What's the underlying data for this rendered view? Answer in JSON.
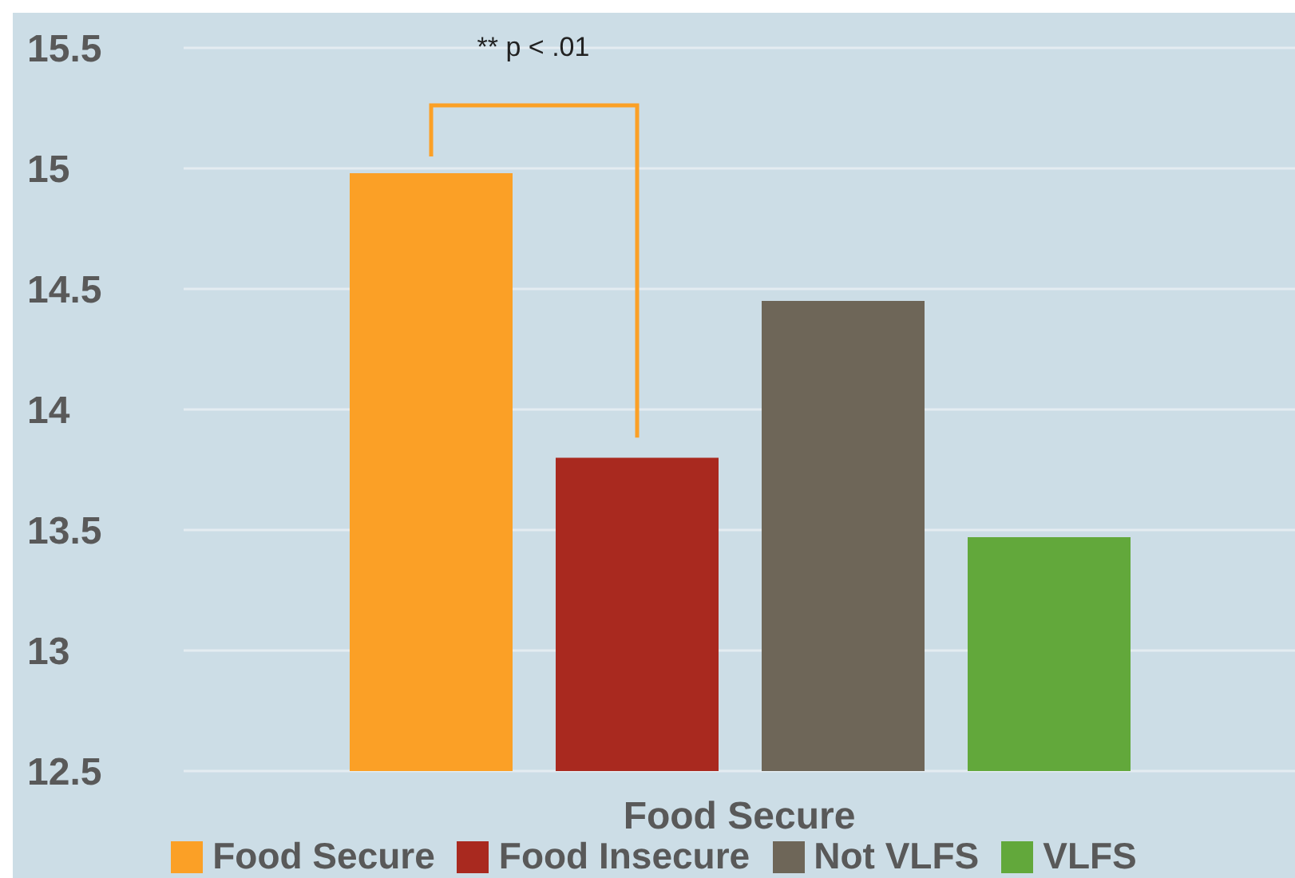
{
  "chart_data": {
    "type": "bar",
    "categories": [
      null,
      null,
      null,
      null
    ],
    "xlabel": "Food Secure",
    "stacked": true,
    "series": [
      {
        "name": "Food Secure",
        "color": "#fba026",
        "values": [
          14.98,
          null,
          null,
          null
        ]
      },
      {
        "name": "Food Insecure",
        "color": "#a9291f",
        "values": [
          null,
          13.8,
          null,
          null
        ]
      },
      {
        "name": "Not VLFS",
        "color": "#6e6658",
        "values": [
          null,
          null,
          14.45,
          null
        ]
      },
      {
        "name": "VLFS",
        "color": "#62a83b",
        "values": [
          null,
          null,
          null,
          13.47
        ]
      }
    ],
    "ylim": [
      12.5,
      15.5
    ],
    "yticks": [
      12.5,
      13,
      13.5,
      14,
      14.5,
      15,
      15.5
    ],
    "grid": "y",
    "legend": "bottom",
    "annotations": [
      "** p < .01"
    ]
  }
}
